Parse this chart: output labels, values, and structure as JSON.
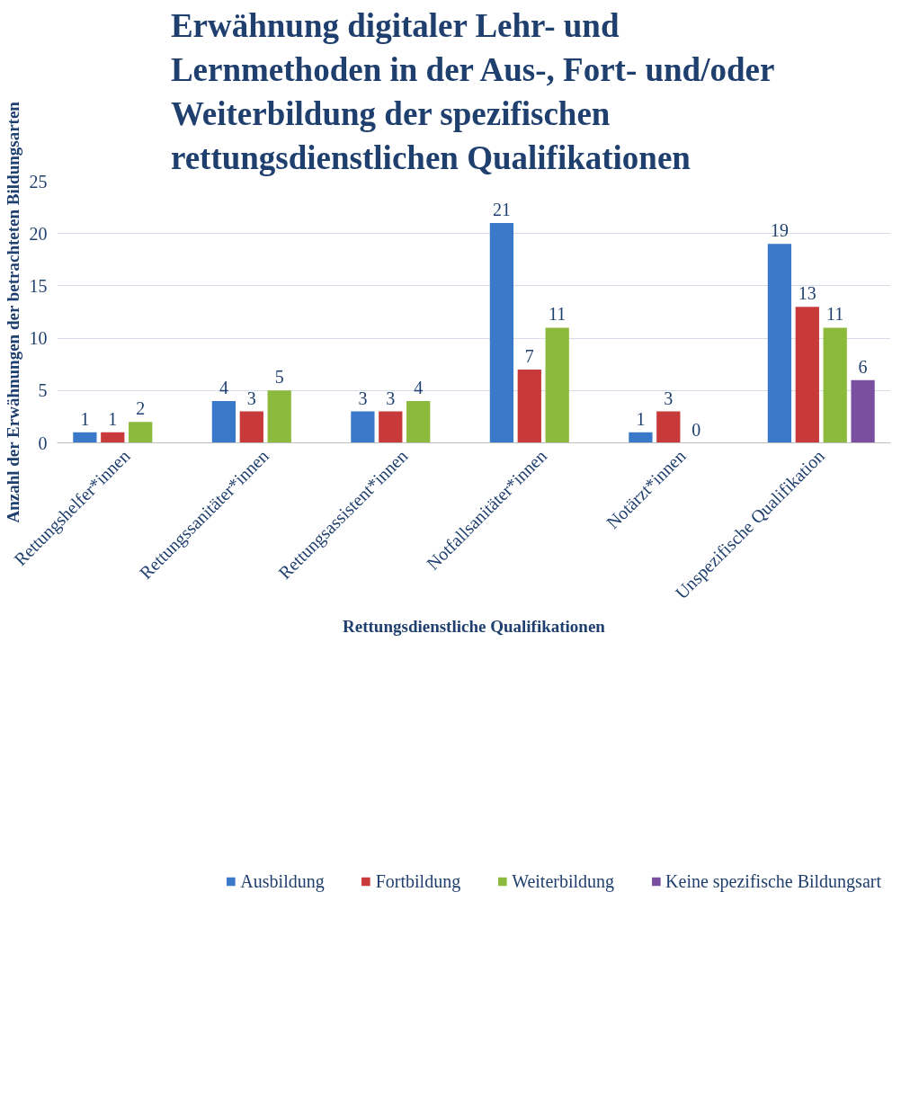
{
  "chart_data": {
    "type": "bar",
    "title": "Erwähnung digitaler Lehr- und Lernmethoden in der Aus-, Fort- und/oder Weiterbildung der spezifischen rettungsdienstlichen Qualifikationen",
    "xlabel": "Rettungsdienstliche Qualifikationen",
    "ylabel": "Anzahl der Erwähnungen der betrachteten Bildungsarten",
    "categories": [
      "Rettungshelfer*innen",
      "Rettungssanitäter*innen",
      "Rettungsassistent*innen",
      "Notfallsanitäter*innen",
      "Notärzt*innen",
      "Unspezifische Qualifikation"
    ],
    "series": [
      {
        "name": "Ausbildung",
        "color": "#3a78c9",
        "values": [
          1,
          4,
          3,
          21,
          1,
          19
        ]
      },
      {
        "name": "Fortbildung",
        "color": "#c83a3a",
        "values": [
          1,
          3,
          3,
          7,
          3,
          13
        ]
      },
      {
        "name": "Weiterbildung",
        "color": "#8cba3c",
        "values": [
          2,
          5,
          4,
          11,
          0,
          11
        ]
      },
      {
        "name": "Keine spezifische Bildungsart",
        "color": "#7a4fa0",
        "values": [
          null,
          null,
          null,
          null,
          null,
          6
        ]
      }
    ],
    "ylim": [
      0,
      25
    ],
    "yticks": [
      0,
      5,
      10,
      15,
      20,
      25
    ],
    "grid": "y",
    "legend": "bottom",
    "data_labels": true
  }
}
